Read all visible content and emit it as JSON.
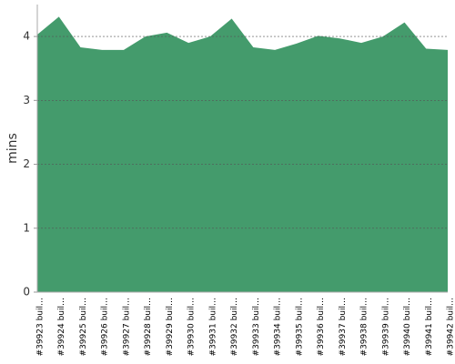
{
  "chart_data": {
    "type": "area",
    "y_label": "mins",
    "categories": [
      "#39923 buil…",
      "#39924 buil…",
      "#39925 buil…",
      "#39926 buil…",
      "#39927 buil…",
      "#39928 buil…",
      "#39929 buil…",
      "#39930 buil…",
      "#39931 buil…",
      "#39932 buil…",
      "#39933 buil…",
      "#39934 buil…",
      "#39935 buil…",
      "#39936 buil…",
      "#39937 buil…",
      "#39938 buil…",
      "#39939 buil…",
      "#39940 buil…",
      "#39941 buil…",
      "#39942 buil…"
    ],
    "values": [
      4.03,
      4.31,
      3.83,
      3.79,
      3.79,
      4.0,
      4.06,
      3.9,
      4.0,
      4.28,
      3.83,
      3.79,
      3.89,
      4.01,
      3.97,
      3.9,
      4.0,
      4.22,
      3.81,
      3.79
    ],
    "color": "#449b6c",
    "ylim": [
      0,
      4.5
    ],
    "yticks": [
      0,
      1,
      2,
      3,
      4
    ],
    "grid": true
  }
}
